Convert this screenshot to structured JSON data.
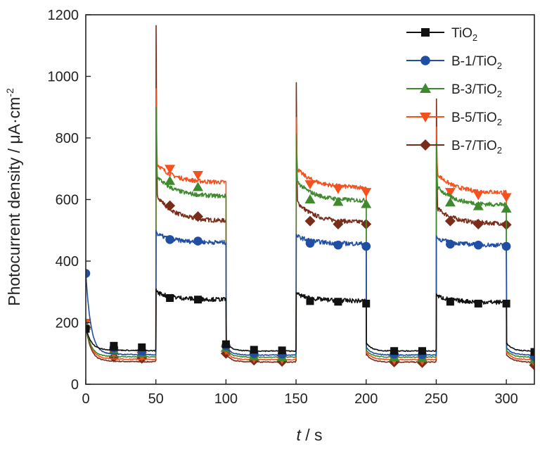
{
  "chart_data": {
    "type": "line",
    "xlabel_italic": "t",
    "xlabel_rest": " / s",
    "ylabel_main": "Photocurrent density / μA·cm",
    "ylabel_sup": "-2",
    "xlim": [
      0,
      320
    ],
    "ylim": [
      0,
      1200
    ],
    "xticks": [
      0,
      50,
      100,
      150,
      200,
      250,
      300
    ],
    "yticks": [
      0,
      200,
      400,
      600,
      800,
      1000,
      1200
    ],
    "grid": false,
    "legend_position": "top-right",
    "series": [
      {
        "name": "TiO2",
        "label_main": "TiO",
        "label_sub": "2",
        "color": "#111111",
        "marker": "square",
        "dark_level": 115,
        "dark_min": 108,
        "light_level": 275,
        "light_start": 300,
        "spike": 310,
        "x": [
          0,
          20,
          40,
          60,
          80,
          100,
          120,
          140,
          160,
          180,
          200,
          220,
          240,
          260,
          280,
          300,
          320
        ],
        "y": [
          180,
          125,
          120,
          280,
          275,
          130,
          112,
          110,
          270,
          268,
          262,
          108,
          108,
          268,
          262,
          262,
          105
        ]
      },
      {
        "name": "B-1/TiO2",
        "label_main": "B-1/TiO",
        "label_sub": "2",
        "color": "#1f4ea3",
        "marker": "circle",
        "dark_level": 100,
        "dark_min": 95,
        "light_level": 460,
        "light_start": 490,
        "spike": 500,
        "x": [
          0,
          20,
          40,
          60,
          80,
          100,
          120,
          140,
          160,
          180,
          200,
          220,
          240,
          260,
          280,
          300,
          320
        ],
        "y": [
          360,
          118,
          108,
          470,
          465,
          125,
          100,
          98,
          458,
          452,
          448,
          98,
          96,
          455,
          452,
          448,
          90
        ]
      },
      {
        "name": "B-3/TiO2",
        "label_main": "B-3/TiO",
        "label_sub": "2",
        "color": "#3f8a2f",
        "marker": "triangle-up",
        "dark_level": 92,
        "dark_min": 88,
        "light_level": 610,
        "light_start": 680,
        "spike": 900,
        "x": [
          0,
          20,
          40,
          60,
          80,
          100,
          120,
          140,
          160,
          180,
          200,
          220,
          240,
          260,
          280,
          300,
          320
        ],
        "y": [
          190,
          110,
          102,
          660,
          640,
          118,
          90,
          88,
          600,
          592,
          585,
          88,
          85,
          590,
          578,
          570,
          80
        ]
      },
      {
        "name": "B-5/TiO2",
        "label_main": "B-5/TiO",
        "label_sub": "2",
        "color": "#f4511e",
        "marker": "triangle-down",
        "dark_level": 85,
        "dark_min": 80,
        "light_level": 655,
        "light_start": 720,
        "spike": 960,
        "x": [
          0,
          20,
          40,
          60,
          80,
          100,
          120,
          140,
          160,
          180,
          200,
          220,
          240,
          260,
          280,
          300,
          320
        ],
        "y": [
          200,
          100,
          92,
          700,
          680,
          112,
          85,
          82,
          650,
          635,
          625,
          80,
          78,
          625,
          615,
          608,
          72
        ]
      },
      {
        "name": "B-7/TiO2",
        "label_main": "B-7/TiO",
        "label_sub": "2",
        "color": "#7a2c1a",
        "marker": "diamond",
        "dark_level": 78,
        "dark_min": 72,
        "light_level": 530,
        "light_start": 620,
        "spike": 1165,
        "x": [
          0,
          20,
          40,
          60,
          80,
          100,
          120,
          140,
          160,
          180,
          200,
          220,
          240,
          260,
          280,
          300,
          320
        ],
        "y": [
          185,
          88,
          84,
          580,
          545,
          100,
          78,
          74,
          530,
          520,
          520,
          72,
          70,
          530,
          520,
          518,
          62
        ]
      }
    ],
    "light_on": [
      50,
      150,
      250
    ],
    "light_off": [
      100,
      200,
      300
    ],
    "spike_scale": [
      1.0,
      0.71,
      0.63
    ]
  }
}
